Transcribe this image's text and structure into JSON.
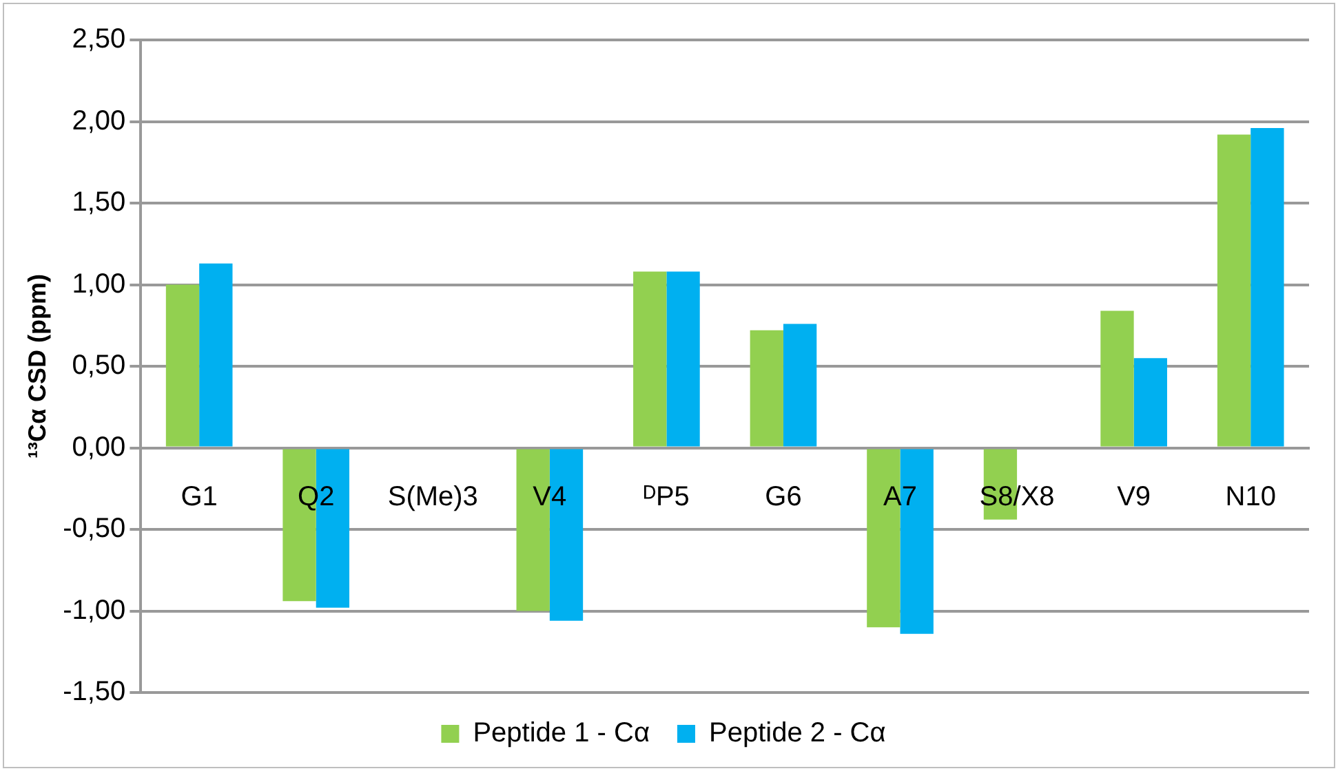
{
  "chart_data": {
    "type": "bar",
    "ylabel": "¹³Cα CSD (ppm)",
    "categories": [
      "G1",
      "Q2",
      "S(Me)3",
      "V4",
      "ᴰP5",
      "G6",
      "A7",
      "S8/X8",
      "V9",
      "N10"
    ],
    "series": [
      {
        "name": "Peptide 1 - Cα",
        "color": "#92d050",
        "values": [
          1.0,
          -0.94,
          null,
          -1.0,
          1.08,
          0.72,
          -1.1,
          -0.44,
          0.84,
          1.92
        ]
      },
      {
        "name": "Peptide 2 - Cα",
        "color": "#00b0f0",
        "values": [
          1.13,
          -0.98,
          null,
          -1.06,
          1.08,
          0.76,
          -1.14,
          null,
          0.55,
          1.96
        ]
      }
    ],
    "ylim": [
      -1.5,
      2.5
    ],
    "yticks": [
      {
        "value": -1.5,
        "label": "-1,50"
      },
      {
        "value": -1,
        "label": "-1,00"
      },
      {
        "value": -0.5,
        "label": "-0,50"
      },
      {
        "value": 0,
        "label": "0,00"
      },
      {
        "value": 0.5,
        "label": "0,50"
      },
      {
        "value": 1,
        "label": "1,00"
      },
      {
        "value": 1.5,
        "label": "1,50"
      },
      {
        "value": 2,
        "label": "2,00"
      },
      {
        "value": 2.5,
        "label": "2,50"
      }
    ],
    "grid": "y",
    "legend": "bottom"
  }
}
